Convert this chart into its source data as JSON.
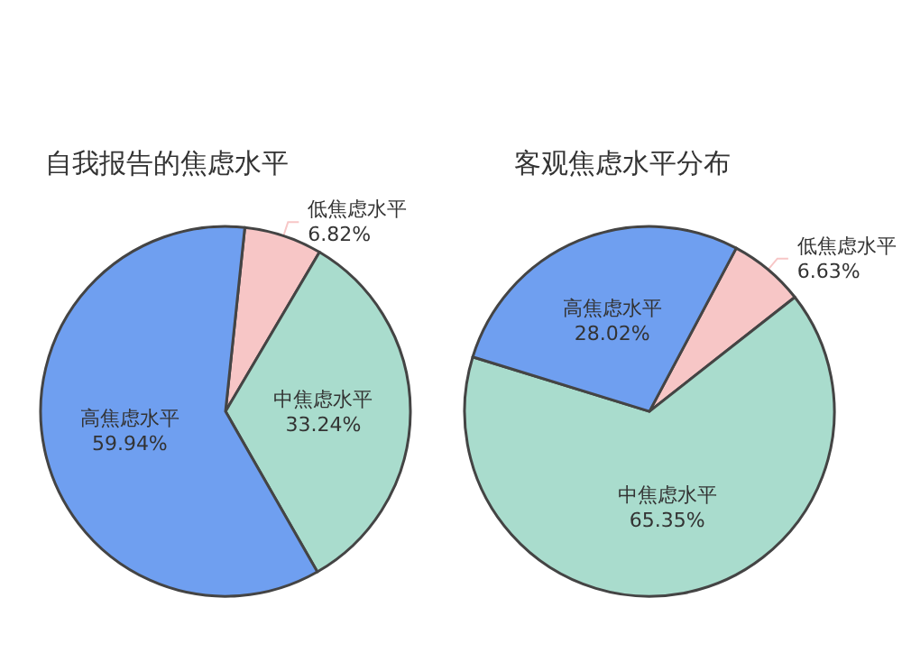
{
  "chart_data": [
    {
      "type": "pie",
      "title": "自我报告的焦虑水平",
      "categories": [
        "低焦虑水平",
        "中焦虑水平",
        "高焦虑水平"
      ],
      "values": [
        6.82,
        33.24,
        59.94
      ],
      "colors": [
        "#f7c6c6",
        "#a9dccd",
        "#6f9ff0"
      ],
      "value_labels": [
        "6.82%",
        "33.24%",
        "59.94%"
      ],
      "legend": false
    },
    {
      "type": "pie",
      "title": "客观焦虑水平分布",
      "categories": [
        "低焦虑水平",
        "中焦虑水平",
        "高焦虑水平"
      ],
      "values": [
        6.63,
        65.35,
        28.02
      ],
      "colors": [
        "#f7c6c6",
        "#a9dccd",
        "#6f9ff0"
      ],
      "value_labels": [
        "6.63%",
        "65.35%",
        "28.02%"
      ],
      "legend": false
    }
  ]
}
